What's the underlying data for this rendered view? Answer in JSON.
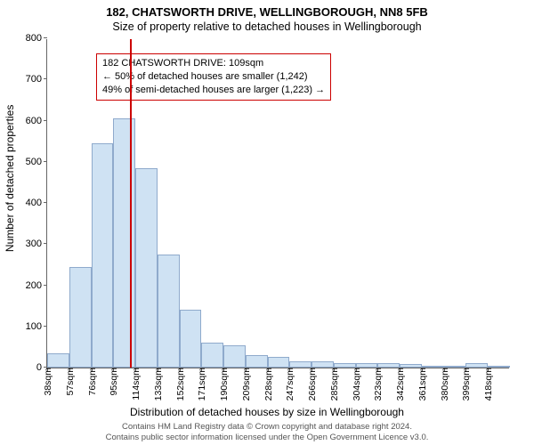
{
  "title": "182, CHATSWORTH DRIVE, WELLINGBOROUGH, NN8 5FB",
  "subtitle": "Size of property relative to detached houses in Wellingborough",
  "ylabel": "Number of detached properties",
  "xlabel": "Distribution of detached houses by size in Wellingborough",
  "annotation": {
    "line1": "182 CHATSWORTH DRIVE: 109sqm",
    "line2": "← 50% of detached houses are smaller (1,242)",
    "line3": "49% of semi-detached houses are larger (1,223) →",
    "border_color": "#cc0000"
  },
  "marker": {
    "x_value": 109,
    "color": "#cc0000"
  },
  "footer": {
    "line1": "Contains HM Land Registry data © Crown copyright and database right 2024.",
    "line2": "Contains public sector information licensed under the Open Government Licence v3.0."
  },
  "chart": {
    "type": "histogram",
    "bar_fill": "#cfe2f3",
    "bar_border": "#8faacc",
    "axis_color": "#666666",
    "background_color": "#ffffff",
    "x_start": 38,
    "x_step": 19,
    "x_unit": "sqm",
    "x_tick_count": 21,
    "ylim": [
      0,
      800
    ],
    "ytick_step": 100,
    "values": [
      35,
      245,
      545,
      605,
      485,
      275,
      140,
      60,
      55,
      30,
      25,
      15,
      15,
      10,
      10,
      10,
      8,
      5,
      5,
      10,
      5
    ]
  }
}
